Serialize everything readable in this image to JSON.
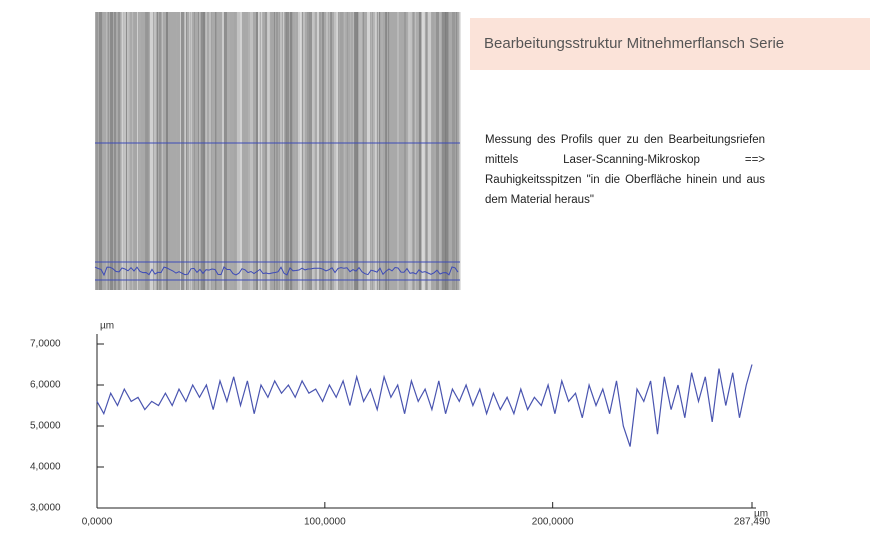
{
  "header": {
    "title": "Bearbeitungsstruktur Mitnehmerflansch Serie"
  },
  "description": "Messung des Profils quer zu den Bearbeitungsriefen mittels Laser-Scanning-Mikroskop ==> Rauhigkeitsspitzen \"in die Oberfläche hinein und aus dem Material heraus\"",
  "chart_data": {
    "type": "line",
    "y_unit": "µm",
    "x_unit": "µm",
    "color": "#4a55b0",
    "grid": false,
    "xlim": [
      0,
      287.49
    ],
    "xticks": [
      {
        "value": 0,
        "label": "0,0000"
      },
      {
        "value": 100,
        "label": "100,0000"
      },
      {
        "value": 200,
        "label": "200,0000"
      },
      {
        "value": 287.49,
        "label": "287,490"
      }
    ],
    "ylim": [
      3,
      7
    ],
    "yticks": [
      {
        "value": 3,
        "label": "3,0000"
      },
      {
        "value": 4,
        "label": "4,0000"
      },
      {
        "value": 5,
        "label": "5,0000"
      },
      {
        "value": 6,
        "label": "6,0000"
      },
      {
        "value": 7,
        "label": "7,0000"
      }
    ],
    "x": [
      0,
      3,
      6,
      9,
      12,
      15,
      18,
      21,
      24,
      27,
      30,
      33,
      36,
      39,
      42,
      45,
      48,
      51,
      54,
      57,
      60,
      63,
      66,
      69,
      72,
      75,
      78,
      81,
      84,
      87,
      90,
      93,
      96,
      99,
      102,
      105,
      108,
      111,
      114,
      117,
      120,
      123,
      126,
      129,
      132,
      135,
      138,
      141,
      144,
      147,
      150,
      153,
      156,
      159,
      162,
      165,
      168,
      171,
      174,
      177,
      180,
      183,
      186,
      189,
      192,
      195,
      198,
      201,
      204,
      207,
      210,
      213,
      216,
      219,
      222,
      225,
      228,
      231,
      234,
      237,
      240,
      243,
      246,
      249,
      252,
      255,
      258,
      261,
      264,
      267,
      270,
      273,
      276,
      279,
      282,
      285,
      287.49
    ],
    "values": [
      5.6,
      5.3,
      5.8,
      5.5,
      5.9,
      5.6,
      5.7,
      5.4,
      5.6,
      5.5,
      5.8,
      5.5,
      5.9,
      5.6,
      6.0,
      5.7,
      6.0,
      5.4,
      6.1,
      5.6,
      6.2,
      5.5,
      6.1,
      5.3,
      6.0,
      5.7,
      6.1,
      5.8,
      6.0,
      5.7,
      6.1,
      5.8,
      5.9,
      5.6,
      6.0,
      5.7,
      6.1,
      5.5,
      6.2,
      5.6,
      5.9,
      5.4,
      6.2,
      5.7,
      6.0,
      5.3,
      6.1,
      5.6,
      5.9,
      5.4,
      6.1,
      5.3,
      5.9,
      5.6,
      6.0,
      5.5,
      5.9,
      5.3,
      5.8,
      5.4,
      5.7,
      5.3,
      5.9,
      5.4,
      5.7,
      5.5,
      6.0,
      5.3,
      6.1,
      5.6,
      5.8,
      5.2,
      6.0,
      5.5,
      5.9,
      5.3,
      6.1,
      5.0,
      4.5,
      5.9,
      5.6,
      6.1,
      4.8,
      6.2,
      5.4,
      6.0,
      5.2,
      6.3,
      5.6,
      6.2,
      5.1,
      6.4,
      5.5,
      6.3,
      5.2,
      6.0,
      6.5
    ]
  }
}
